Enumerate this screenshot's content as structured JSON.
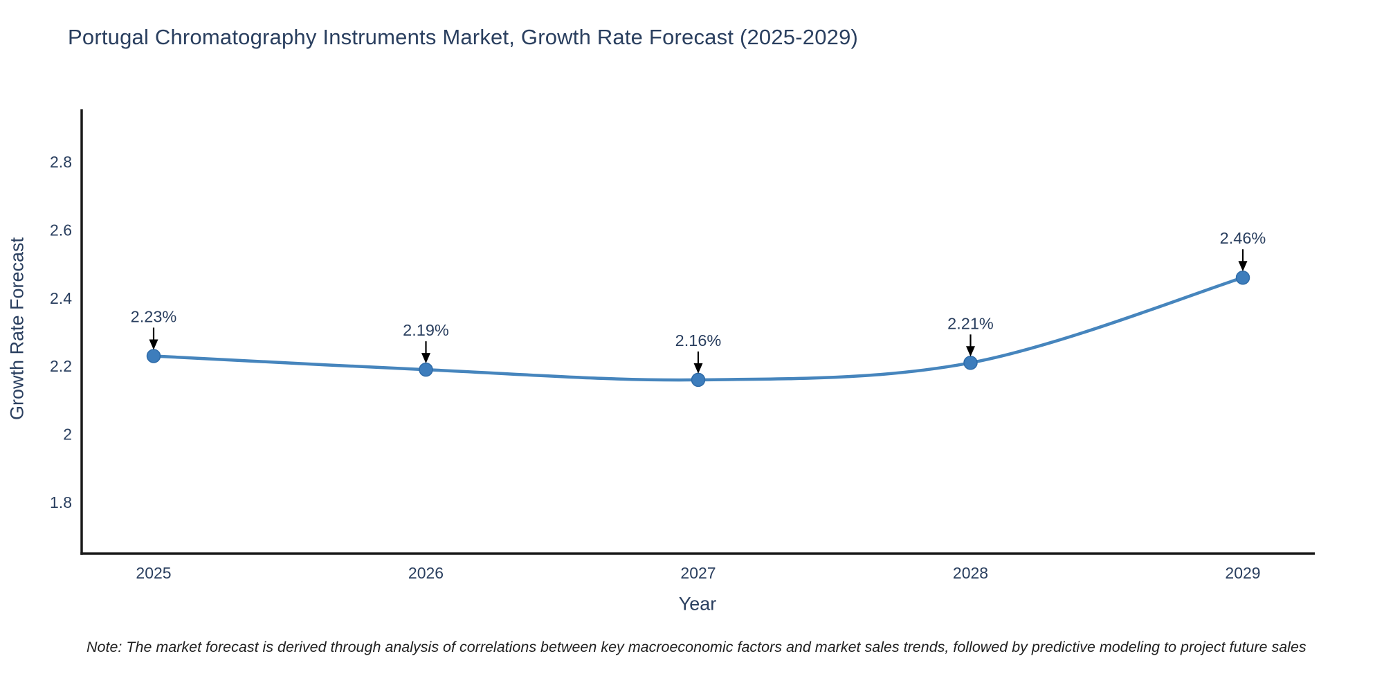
{
  "title": "Portugal Chromatography Instruments Market, Growth Rate Forecast (2025-2029)",
  "note": "Note: The market forecast is derived through analysis of correlations between key macroeconomic factors and market sales trends, followed by predictive modeling to project future sales",
  "colors": {
    "text": "#2a3f5f",
    "note_text": "#1f1f1f",
    "axis_line": "#1a1a1a",
    "series_line": "#4685bd",
    "marker_fill": "#3d7dbc",
    "marker_stroke": "#2e6ba8",
    "annotation_arrow": "#000000",
    "background": "#ffffff"
  },
  "chart_data": {
    "type": "line",
    "title": "Portugal Chromatography Instruments Market, Growth Rate Forecast (2025-2029)",
    "xlabel": "Year",
    "ylabel": "Growth Rate Forecast",
    "categories": [
      "2025",
      "2026",
      "2027",
      "2028",
      "2029"
    ],
    "values": [
      2.23,
      2.19,
      2.16,
      2.21,
      2.46
    ],
    "point_labels": [
      "2.23%",
      "2.19%",
      "2.16%",
      "2.21%",
      "2.46%"
    ],
    "ylim": [
      1.65,
      2.95
    ],
    "yticks": [
      1.8,
      2.0,
      2.2,
      2.4,
      2.6,
      2.8
    ],
    "ytick_labels": [
      "1.8",
      "2",
      "2.2",
      "2.4",
      "2.6",
      "2.8"
    ],
    "grid": false,
    "legend": "none",
    "line_shape": "spline",
    "annotations": "black arrows pointing from each value label down to its data point"
  }
}
